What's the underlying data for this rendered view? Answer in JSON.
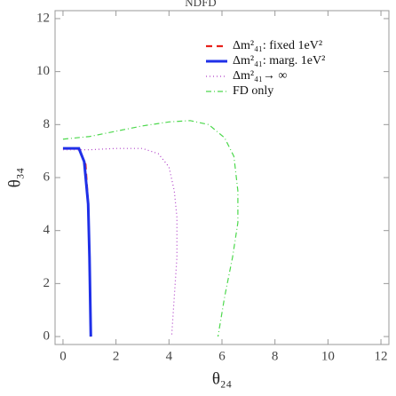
{
  "chart_data": {
    "type": "line",
    "title": "NDFD",
    "x_label": "θ₂₄",
    "y_label": "θ₃₄",
    "xlim": [
      -0.3,
      12.3
    ],
    "ylim": [
      -0.3,
      12.3
    ],
    "xticks": [
      0,
      2,
      4,
      6,
      8,
      10,
      12
    ],
    "yticks": [
      0,
      2,
      4,
      6,
      8,
      10,
      12
    ],
    "legend": "top-right",
    "series": [
      {
        "name": "Δm²₄₁: fixed 1eV²",
        "color": "#e8201a",
        "dash": "7,5",
        "width": 2.2,
        "x": [
          0,
          0.6,
          0.85,
          0.95,
          1.0,
          1.05
        ],
        "values": [
          7.1,
          7.1,
          6.5,
          5,
          3,
          0
        ]
      },
      {
        "name": "Δm²₄₁: marg. 1eV²",
        "color": "#1f30e8",
        "dash": "none",
        "width": 3,
        "x": [
          0,
          0.6,
          0.8,
          0.95,
          1.0,
          1.05
        ],
        "values": [
          7.1,
          7.1,
          6.6,
          5,
          3,
          0
        ]
      },
      {
        "name": "Δm²₄₁→ ∞",
        "color": "#b040c8",
        "dash": "1,3",
        "width": 1.2,
        "x": [
          0,
          1,
          2,
          3,
          3.6,
          4.0,
          4.2,
          4.3,
          4.3,
          4.2,
          4.1
        ],
        "values": [
          7.05,
          7.05,
          7.1,
          7.1,
          6.9,
          6.4,
          5.5,
          4.5,
          3,
          1.5,
          0
        ]
      },
      {
        "name": "FD only",
        "color": "#4cd84c",
        "dash": "6,3,1,3",
        "width": 1.2,
        "x": [
          0,
          1,
          2,
          3,
          4,
          4.8,
          5.5,
          6.1,
          6.45,
          6.6,
          6.6,
          6.4,
          6.1,
          5.85
        ],
        "values": [
          7.45,
          7.55,
          7.75,
          7.95,
          8.1,
          8.15,
          8.0,
          7.5,
          6.8,
          5.5,
          4.3,
          3,
          1.5,
          0
        ]
      }
    ]
  }
}
